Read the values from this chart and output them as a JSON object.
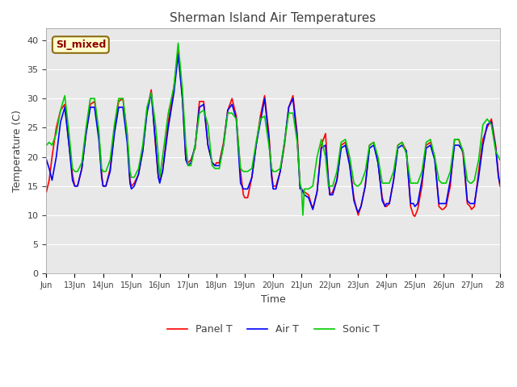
{
  "title": "Sherman Island Air Temperatures",
  "xlabel": "Time",
  "ylabel": "Temperature (C)",
  "ylim": [
    0,
    42
  ],
  "yticks": [
    0,
    5,
    10,
    15,
    20,
    25,
    30,
    35,
    40
  ],
  "fig_bg_color": "#ffffff",
  "plot_bg_color": "#e8e8e8",
  "grid_color": "#ffffff",
  "label_box_text": "SI_mixed",
  "label_box_facecolor": "#ffffcc",
  "label_box_edgecolor": "#8b6914",
  "label_box_textcolor": "#8b0000",
  "series": {
    "panel_t": {
      "label": "Panel T",
      "color": "#ff0000",
      "linewidth": 1.2
    },
    "air_t": {
      "label": "Air T",
      "color": "#0000ff",
      "linewidth": 1.2
    },
    "sonic_t": {
      "label": "Sonic T",
      "color": "#00cc00",
      "linewidth": 1.2
    }
  },
  "start_day": 12,
  "end_day": 28,
  "x_tick_days": [
    12,
    13,
    14,
    15,
    16,
    17,
    18,
    19,
    20,
    21,
    22,
    23,
    24,
    25,
    26,
    27,
    28
  ],
  "x_tick_labels": [
    "Jun",
    "13Jun",
    "14Jun",
    "15Jun",
    "16Jun",
    "17Jun",
    "18Jun",
    "19Jun",
    "20Jun",
    "21Jun",
    "22Jun",
    "23Jun",
    "24Jun",
    "25Jun",
    "26Jun",
    "27Jun",
    "28"
  ],
  "panel_t_x": [
    12.0,
    12.1,
    12.2,
    12.35,
    12.5,
    12.65,
    12.8,
    12.92,
    13.0,
    13.1,
    13.25,
    13.4,
    13.55,
    13.7,
    13.85,
    13.95,
    14.0,
    14.1,
    14.25,
    14.4,
    14.55,
    14.7,
    14.85,
    14.95,
    15.0,
    15.1,
    15.25,
    15.4,
    15.55,
    15.7,
    15.85,
    15.95,
    16.0,
    16.1,
    16.3,
    16.5,
    16.65,
    16.8,
    16.92,
    17.0,
    17.1,
    17.25,
    17.4,
    17.55,
    17.7,
    17.85,
    17.95,
    18.0,
    18.1,
    18.25,
    18.4,
    18.55,
    18.7,
    18.85,
    18.95,
    19.0,
    19.1,
    19.25,
    19.4,
    19.55,
    19.7,
    19.85,
    19.95,
    20.0,
    20.1,
    20.25,
    20.4,
    20.55,
    20.7,
    20.85,
    20.95,
    21.0,
    21.1,
    21.25,
    21.4,
    21.55,
    21.7,
    21.85,
    21.95,
    22.0,
    22.1,
    22.25,
    22.4,
    22.55,
    22.7,
    22.85,
    22.95,
    23.0,
    23.1,
    23.25,
    23.4,
    23.55,
    23.7,
    23.85,
    23.95,
    24.0,
    24.1,
    24.25,
    24.4,
    24.55,
    24.7,
    24.85,
    24.95,
    25.0,
    25.1,
    25.25,
    25.4,
    25.55,
    25.7,
    25.85,
    25.95,
    26.0,
    26.1,
    26.25,
    26.4,
    26.55,
    26.7,
    26.85,
    26.95,
    27.0,
    27.1,
    27.25,
    27.4,
    27.55,
    27.7,
    27.85,
    27.95,
    28.0
  ],
  "panel_t_y": [
    14.0,
    16.0,
    20.0,
    25.0,
    28.0,
    29.0,
    22.0,
    17.0,
    15.0,
    15.0,
    18.0,
    24.0,
    29.0,
    29.5,
    24.0,
    17.0,
    15.0,
    15.0,
    18.0,
    24.5,
    29.5,
    30.0,
    24.0,
    16.0,
    15.0,
    15.5,
    17.0,
    21.0,
    28.0,
    31.5,
    22.0,
    16.5,
    16.0,
    17.5,
    26.0,
    32.0,
    38.0,
    30.0,
    19.5,
    19.0,
    19.5,
    21.5,
    29.5,
    29.5,
    22.0,
    19.0,
    18.5,
    19.0,
    19.0,
    22.5,
    28.0,
    30.0,
    27.0,
    17.5,
    13.5,
    13.0,
    13.0,
    16.5,
    22.0,
    27.0,
    30.5,
    24.0,
    17.0,
    15.0,
    15.0,
    17.5,
    22.0,
    28.5,
    30.5,
    24.0,
    15.0,
    14.5,
    14.0,
    13.5,
    11.0,
    14.0,
    22.0,
    24.0,
    16.0,
    13.5,
    14.0,
    16.0,
    22.0,
    22.5,
    19.0,
    13.0,
    11.0,
    10.0,
    11.5,
    15.0,
    22.0,
    22.5,
    19.0,
    13.0,
    11.5,
    11.5,
    12.0,
    16.0,
    22.0,
    22.5,
    21.0,
    11.5,
    10.0,
    9.8,
    11.0,
    15.0,
    22.0,
    22.5,
    20.0,
    11.5,
    11.0,
    11.0,
    11.5,
    15.0,
    23.0,
    23.0,
    20.5,
    12.0,
    11.5,
    11.0,
    11.5,
    17.5,
    23.0,
    25.0,
    26.5,
    22.0,
    17.0,
    15.0
  ],
  "air_t_x": [
    12.0,
    12.1,
    12.2,
    12.35,
    12.5,
    12.65,
    12.8,
    12.92,
    13.0,
    13.1,
    13.25,
    13.4,
    13.55,
    13.7,
    13.85,
    13.95,
    14.0,
    14.1,
    14.25,
    14.4,
    14.55,
    14.7,
    14.85,
    14.95,
    15.0,
    15.1,
    15.25,
    15.4,
    15.55,
    15.7,
    15.85,
    15.95,
    16.0,
    16.1,
    16.3,
    16.5,
    16.65,
    16.8,
    16.92,
    17.0,
    17.1,
    17.25,
    17.4,
    17.55,
    17.7,
    17.85,
    17.95,
    18.0,
    18.1,
    18.25,
    18.4,
    18.55,
    18.7,
    18.85,
    18.95,
    19.0,
    19.1,
    19.25,
    19.4,
    19.55,
    19.7,
    19.85,
    19.95,
    20.0,
    20.1,
    20.25,
    20.4,
    20.55,
    20.7,
    20.85,
    20.95,
    21.0,
    21.1,
    21.25,
    21.4,
    21.55,
    21.7,
    21.85,
    21.95,
    22.0,
    22.1,
    22.25,
    22.4,
    22.55,
    22.7,
    22.85,
    22.95,
    23.0,
    23.1,
    23.25,
    23.4,
    23.55,
    23.7,
    23.85,
    23.95,
    24.0,
    24.1,
    24.25,
    24.4,
    24.55,
    24.7,
    24.85,
    24.95,
    25.0,
    25.1,
    25.25,
    25.4,
    25.55,
    25.7,
    25.85,
    25.95,
    26.0,
    26.1,
    26.25,
    26.4,
    26.55,
    26.7,
    26.85,
    26.95,
    27.0,
    27.1,
    27.25,
    27.4,
    27.55,
    27.7,
    27.85,
    27.95,
    28.0
  ],
  "air_t_y": [
    19.5,
    18.0,
    16.0,
    20.0,
    26.0,
    28.5,
    22.0,
    16.0,
    15.0,
    15.0,
    18.0,
    24.0,
    28.5,
    28.5,
    23.0,
    16.5,
    15.0,
    15.0,
    17.5,
    24.0,
    28.5,
    28.5,
    22.5,
    15.5,
    14.5,
    15.0,
    17.0,
    21.0,
    27.5,
    31.0,
    22.5,
    16.5,
    15.5,
    17.5,
    25.0,
    31.0,
    37.5,
    30.0,
    19.5,
    18.5,
    19.0,
    22.0,
    28.5,
    29.0,
    22.0,
    19.0,
    18.5,
    18.5,
    18.5,
    22.0,
    28.0,
    29.0,
    26.5,
    15.5,
    14.5,
    14.5,
    14.5,
    16.5,
    22.0,
    26.0,
    30.0,
    23.0,
    16.5,
    14.5,
    14.5,
    17.5,
    22.5,
    28.5,
    30.0,
    23.0,
    14.5,
    14.5,
    13.5,
    13.0,
    11.0,
    14.0,
    21.5,
    22.0,
    16.0,
    13.5,
    13.5,
    16.0,
    21.5,
    22.0,
    18.5,
    12.5,
    11.0,
    10.5,
    11.5,
    15.0,
    21.5,
    22.0,
    19.0,
    12.5,
    11.5,
    12.0,
    12.0,
    16.0,
    21.5,
    22.0,
    21.0,
    12.0,
    12.0,
    11.5,
    12.0,
    16.0,
    21.5,
    22.0,
    19.5,
    12.0,
    12.0,
    12.0,
    12.0,
    16.0,
    22.0,
    22.0,
    21.0,
    12.5,
    12.0,
    12.0,
    12.0,
    16.5,
    22.0,
    25.5,
    26.0,
    21.5,
    16.5,
    15.5
  ],
  "sonic_t_x": [
    12.0,
    12.1,
    12.2,
    12.35,
    12.5,
    12.65,
    12.8,
    12.92,
    13.0,
    13.1,
    13.25,
    13.4,
    13.55,
    13.7,
    13.85,
    13.95,
    14.0,
    14.1,
    14.25,
    14.4,
    14.55,
    14.7,
    14.85,
    14.95,
    15.0,
    15.1,
    15.25,
    15.4,
    15.55,
    15.7,
    15.85,
    15.95,
    16.0,
    16.1,
    16.3,
    16.5,
    16.65,
    16.8,
    16.92,
    17.0,
    17.1,
    17.25,
    17.4,
    17.55,
    17.7,
    17.85,
    17.95,
    18.0,
    18.1,
    18.25,
    18.4,
    18.55,
    18.7,
    18.85,
    18.95,
    19.0,
    19.1,
    19.25,
    19.4,
    19.55,
    19.7,
    19.85,
    19.95,
    20.0,
    20.1,
    20.25,
    20.4,
    20.55,
    20.7,
    20.85,
    20.95,
    21.0,
    21.05,
    21.1,
    21.25,
    21.4,
    21.55,
    21.7,
    21.85,
    21.95,
    22.0,
    22.1,
    22.25,
    22.4,
    22.55,
    22.7,
    22.85,
    22.95,
    23.0,
    23.1,
    23.25,
    23.4,
    23.55,
    23.7,
    23.85,
    23.95,
    24.0,
    24.1,
    24.25,
    24.4,
    24.55,
    24.7,
    24.85,
    24.95,
    25.0,
    25.1,
    25.25,
    25.4,
    25.55,
    25.7,
    25.85,
    25.95,
    26.0,
    26.1,
    26.25,
    26.4,
    26.55,
    26.7,
    26.85,
    26.95,
    27.0,
    27.1,
    27.25,
    27.4,
    27.55,
    27.7,
    27.85,
    27.95,
    28.0
  ],
  "sonic_t_y": [
    22.0,
    22.5,
    22.0,
    24.0,
    28.0,
    30.5,
    24.0,
    18.0,
    17.5,
    17.5,
    19.0,
    25.0,
    30.0,
    30.0,
    24.5,
    18.0,
    17.5,
    17.5,
    19.5,
    25.5,
    30.0,
    30.0,
    24.0,
    17.5,
    16.5,
    16.5,
    18.0,
    22.0,
    28.5,
    31.0,
    25.5,
    20.0,
    16.5,
    20.0,
    27.5,
    32.0,
    39.5,
    31.5,
    22.0,
    18.5,
    18.5,
    22.0,
    27.5,
    28.0,
    25.5,
    18.5,
    18.0,
    18.0,
    18.0,
    22.0,
    27.5,
    27.5,
    26.5,
    18.0,
    17.5,
    17.5,
    17.5,
    18.0,
    22.5,
    26.5,
    27.0,
    22.0,
    18.0,
    17.5,
    17.5,
    18.0,
    22.5,
    27.5,
    27.5,
    22.5,
    15.5,
    14.5,
    10.0,
    14.5,
    14.5,
    15.0,
    20.0,
    23.0,
    20.0,
    15.0,
    15.0,
    15.0,
    17.5,
    22.5,
    23.0,
    20.0,
    15.5,
    15.0,
    15.0,
    15.5,
    17.5,
    22.0,
    22.5,
    20.0,
    15.5,
    15.5,
    15.5,
    15.5,
    17.5,
    22.0,
    22.5,
    20.5,
    15.5,
    15.5,
    15.5,
    15.5,
    17.5,
    22.5,
    23.0,
    20.0,
    16.0,
    15.5,
    15.5,
    15.5,
    17.5,
    23.0,
    23.0,
    21.0,
    16.0,
    15.5,
    15.5,
    16.0,
    19.5,
    25.5,
    26.5,
    25.5,
    21.0,
    20.0,
    19.5
  ]
}
